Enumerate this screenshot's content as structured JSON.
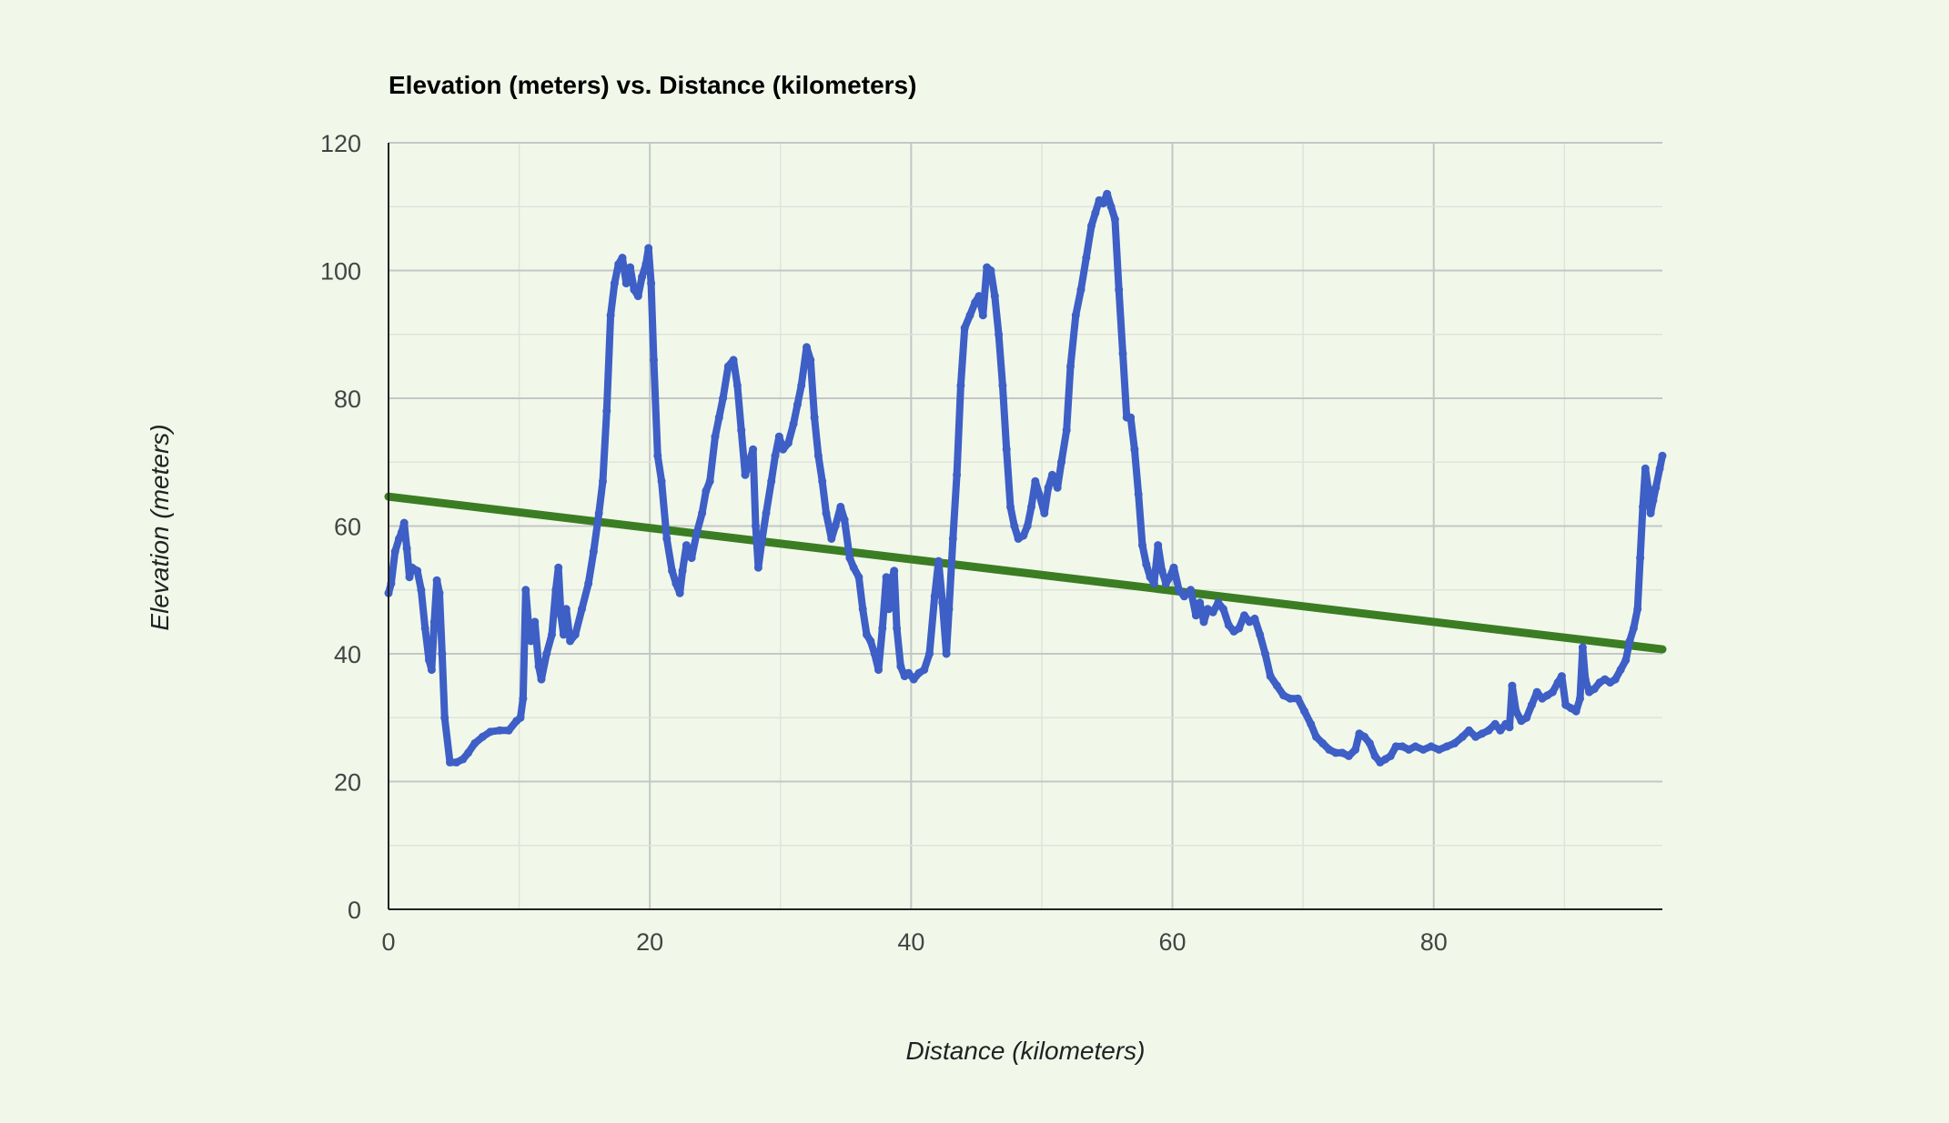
{
  "colors": {
    "background": "#f1f8ea",
    "elevation_series": "#3d5fc6",
    "trendline": "#3b7d23",
    "major_grid": "#c3c7c4",
    "minor_grid": "#dfe3dc",
    "axis": "#222222"
  },
  "chart_data": {
    "type": "scatter",
    "title": "Elevation (meters) vs. Distance (kilometers)",
    "xlabel": "Distance (kilometers)",
    "ylabel": "Elevation (meters)",
    "xlim": [
      0,
      97.5
    ],
    "ylim": [
      0,
      120
    ],
    "x_ticks": [
      "0",
      "20",
      "40",
      "60",
      "80"
    ],
    "y_ticks": [
      "0",
      "20",
      "40",
      "60",
      "80",
      "100",
      "120"
    ],
    "grid": true,
    "legend": "none",
    "series": [
      {
        "points": [
          [
            0,
            49.5
          ],
          [
            0.2,
            51
          ],
          [
            0.5,
            56
          ],
          [
            0.8,
            58
          ],
          [
            1.0,
            59
          ],
          [
            1.2,
            60.5
          ],
          [
            1.4,
            56.5
          ],
          [
            1.6,
            52
          ],
          [
            1.8,
            53.5
          ],
          [
            2.2,
            53
          ],
          [
            2.5,
            50
          ],
          [
            2.8,
            44
          ],
          [
            3.1,
            39
          ],
          [
            3.3,
            37.5
          ],
          [
            3.5,
            45
          ],
          [
            3.7,
            51.5
          ],
          [
            3.9,
            49.5
          ],
          [
            4.1,
            40
          ],
          [
            4.3,
            30
          ],
          [
            4.7,
            23
          ],
          [
            5.2,
            23
          ],
          [
            5.7,
            23.5
          ],
          [
            6.1,
            24.5
          ],
          [
            6.6,
            26
          ],
          [
            7.2,
            27
          ],
          [
            7.8,
            27.8
          ],
          [
            8.5,
            28
          ],
          [
            9.2,
            28
          ],
          [
            9.8,
            29.5
          ],
          [
            10.1,
            30
          ],
          [
            10.3,
            33
          ],
          [
            10.5,
            50
          ],
          [
            10.7,
            45
          ],
          [
            10.9,
            42
          ],
          [
            11.2,
            45
          ],
          [
            11.5,
            38
          ],
          [
            11.7,
            36
          ],
          [
            12.1,
            40
          ],
          [
            12.5,
            43
          ],
          [
            12.8,
            50
          ],
          [
            13.0,
            53.5
          ],
          [
            13.2,
            46
          ],
          [
            13.4,
            43
          ],
          [
            13.6,
            47
          ],
          [
            13.9,
            42
          ],
          [
            14.3,
            43
          ],
          [
            14.8,
            47
          ],
          [
            15.3,
            51
          ],
          [
            15.7,
            56
          ],
          [
            16.1,
            62
          ],
          [
            16.4,
            67
          ],
          [
            16.7,
            78
          ],
          [
            17.0,
            93
          ],
          [
            17.3,
            98
          ],
          [
            17.6,
            101
          ],
          [
            17.9,
            102
          ],
          [
            18.2,
            98
          ],
          [
            18.5,
            100.5
          ],
          [
            18.8,
            97
          ],
          [
            19.1,
            96
          ],
          [
            19.4,
            99
          ],
          [
            19.7,
            101
          ],
          [
            19.9,
            103.5
          ],
          [
            20.1,
            98
          ],
          [
            20.3,
            86
          ],
          [
            20.6,
            71
          ],
          [
            20.9,
            67
          ],
          [
            21.3,
            58
          ],
          [
            21.7,
            53
          ],
          [
            22.0,
            51
          ],
          [
            22.3,
            49.5
          ],
          [
            22.5,
            53
          ],
          [
            22.8,
            57
          ],
          [
            23.2,
            55
          ],
          [
            23.6,
            59
          ],
          [
            24.0,
            62
          ],
          [
            24.3,
            65.5
          ],
          [
            24.6,
            67
          ],
          [
            25.0,
            74
          ],
          [
            25.3,
            77
          ],
          [
            25.6,
            80
          ],
          [
            26.0,
            85
          ],
          [
            26.4,
            86
          ],
          [
            26.7,
            82
          ],
          [
            27.0,
            75
          ],
          [
            27.3,
            68
          ],
          [
            27.6,
            70
          ],
          [
            27.9,
            72
          ],
          [
            28.1,
            60
          ],
          [
            28.3,
            53.5
          ],
          [
            28.6,
            58
          ],
          [
            28.9,
            62
          ],
          [
            29.3,
            67
          ],
          [
            29.6,
            71
          ],
          [
            29.9,
            74
          ],
          [
            30.2,
            72
          ],
          [
            30.6,
            73
          ],
          [
            31.0,
            76
          ],
          [
            31.3,
            79
          ],
          [
            31.6,
            82
          ],
          [
            32.0,
            88
          ],
          [
            32.3,
            86
          ],
          [
            32.6,
            77
          ],
          [
            32.9,
            71
          ],
          [
            33.2,
            67
          ],
          [
            33.5,
            62
          ],
          [
            33.9,
            58
          ],
          [
            34.2,
            60
          ],
          [
            34.6,
            63
          ],
          [
            34.9,
            61
          ],
          [
            35.3,
            55
          ],
          [
            35.6,
            53.5
          ],
          [
            36.0,
            52
          ],
          [
            36.3,
            47
          ],
          [
            36.6,
            43
          ],
          [
            36.9,
            42
          ],
          [
            37.2,
            40
          ],
          [
            37.5,
            37.5
          ],
          [
            37.8,
            44
          ],
          [
            38.1,
            52
          ],
          [
            38.3,
            47
          ],
          [
            38.5,
            51.5
          ],
          [
            38.7,
            53
          ],
          [
            38.9,
            44
          ],
          [
            39.2,
            38
          ],
          [
            39.5,
            36.5
          ],
          [
            39.8,
            37
          ],
          [
            40.2,
            36
          ],
          [
            40.6,
            37
          ],
          [
            41.0,
            37.5
          ],
          [
            41.4,
            40
          ],
          [
            41.8,
            49
          ],
          [
            42.1,
            54.5
          ],
          [
            42.4,
            48
          ],
          [
            42.7,
            40
          ],
          [
            42.9,
            47
          ],
          [
            43.2,
            58
          ],
          [
            43.5,
            68
          ],
          [
            43.8,
            82
          ],
          [
            44.1,
            91
          ],
          [
            44.5,
            93
          ],
          [
            44.9,
            95
          ],
          [
            45.2,
            96
          ],
          [
            45.5,
            93
          ],
          [
            45.8,
            100.5
          ],
          [
            46.1,
            100
          ],
          [
            46.4,
            96
          ],
          [
            46.7,
            90
          ],
          [
            47.0,
            82
          ],
          [
            47.3,
            72
          ],
          [
            47.6,
            63
          ],
          [
            47.9,
            60
          ],
          [
            48.2,
            58
          ],
          [
            48.6,
            58.5
          ],
          [
            48.9,
            60
          ],
          [
            49.2,
            63
          ],
          [
            49.5,
            67
          ],
          [
            49.8,
            65
          ],
          [
            50.2,
            62
          ],
          [
            50.5,
            66
          ],
          [
            50.8,
            68
          ],
          [
            51.2,
            66
          ],
          [
            51.5,
            70
          ],
          [
            51.9,
            75
          ],
          [
            52.2,
            85
          ],
          [
            52.6,
            93
          ],
          [
            53.0,
            97
          ],
          [
            53.4,
            102
          ],
          [
            53.8,
            107
          ],
          [
            54.1,
            109
          ],
          [
            54.4,
            111
          ],
          [
            54.7,
            110.5
          ],
          [
            55.0,
            112
          ],
          [
            55.3,
            110
          ],
          [
            55.6,
            108
          ],
          [
            55.9,
            97
          ],
          [
            56.2,
            87
          ],
          [
            56.5,
            77
          ],
          [
            56.8,
            77
          ],
          [
            57.1,
            72
          ],
          [
            57.4,
            65
          ],
          [
            57.7,
            57
          ],
          [
            58.0,
            54
          ],
          [
            58.3,
            52
          ],
          [
            58.6,
            51
          ],
          [
            58.9,
            57
          ],
          [
            59.2,
            53
          ],
          [
            59.5,
            51
          ],
          [
            59.8,
            52
          ],
          [
            60.1,
            53.5
          ],
          [
            60.5,
            50
          ],
          [
            60.9,
            49
          ],
          [
            61.4,
            50
          ],
          [
            61.8,
            46
          ],
          [
            62.1,
            48
          ],
          [
            62.4,
            45
          ],
          [
            62.7,
            47
          ],
          [
            63.1,
            46.5
          ],
          [
            63.5,
            48
          ],
          [
            63.9,
            47
          ],
          [
            64.3,
            44.5
          ],
          [
            64.7,
            43.5
          ],
          [
            65.1,
            44
          ],
          [
            65.5,
            46
          ],
          [
            65.9,
            45
          ],
          [
            66.3,
            45.5
          ],
          [
            66.7,
            43
          ],
          [
            67.1,
            40
          ],
          [
            67.5,
            36.5
          ],
          [
            68.0,
            35
          ],
          [
            68.5,
            33.5
          ],
          [
            69.0,
            33
          ],
          [
            69.6,
            33
          ],
          [
            70.1,
            31
          ],
          [
            70.6,
            29
          ],
          [
            71.0,
            27
          ],
          [
            71.5,
            26
          ],
          [
            72.0,
            25
          ],
          [
            72.5,
            24.5
          ],
          [
            73.0,
            24.5
          ],
          [
            73.5,
            24
          ],
          [
            74.0,
            25
          ],
          [
            74.3,
            27.5
          ],
          [
            74.7,
            27
          ],
          [
            75.1,
            26
          ],
          [
            75.5,
            24
          ],
          [
            75.9,
            23
          ],
          [
            76.3,
            23.5
          ],
          [
            76.7,
            24
          ],
          [
            77.1,
            25.5
          ],
          [
            77.6,
            25.5
          ],
          [
            78.1,
            25
          ],
          [
            78.6,
            25.5
          ],
          [
            79.2,
            25
          ],
          [
            79.8,
            25.5
          ],
          [
            80.4,
            25
          ],
          [
            81.0,
            25.5
          ],
          [
            81.6,
            26
          ],
          [
            82.2,
            27
          ],
          [
            82.7,
            28
          ],
          [
            83.2,
            27
          ],
          [
            83.7,
            27.5
          ],
          [
            84.2,
            28
          ],
          [
            84.7,
            29
          ],
          [
            85.1,
            28
          ],
          [
            85.5,
            29
          ],
          [
            85.8,
            28.5
          ],
          [
            86.0,
            35
          ],
          [
            86.3,
            31
          ],
          [
            86.7,
            29.5
          ],
          [
            87.1,
            30
          ],
          [
            87.5,
            32
          ],
          [
            87.9,
            34
          ],
          [
            88.3,
            33
          ],
          [
            88.7,
            33.5
          ],
          [
            89.1,
            34
          ],
          [
            89.5,
            35.5
          ],
          [
            89.8,
            36.5
          ],
          [
            90.1,
            32
          ],
          [
            90.5,
            31.5
          ],
          [
            90.9,
            31
          ],
          [
            91.2,
            33
          ],
          [
            91.4,
            41
          ],
          [
            91.6,
            36
          ],
          [
            91.9,
            34
          ],
          [
            92.3,
            34.5
          ],
          [
            92.7,
            35.5
          ],
          [
            93.1,
            36
          ],
          [
            93.5,
            35.5
          ],
          [
            93.9,
            36
          ],
          [
            94.3,
            37.5
          ],
          [
            94.7,
            39
          ],
          [
            95.0,
            42
          ],
          [
            95.3,
            44
          ],
          [
            95.6,
            47
          ],
          [
            95.8,
            55
          ],
          [
            96.0,
            63
          ],
          [
            96.2,
            69
          ],
          [
            96.4,
            66
          ],
          [
            96.6,
            62
          ],
          [
            96.8,
            64
          ],
          [
            97.0,
            66
          ],
          [
            97.3,
            69
          ],
          [
            97.5,
            71
          ]
        ]
      }
    ],
    "trendline": {
      "x": [
        0,
        97.5
      ],
      "y": [
        64.6,
        40.7
      ]
    }
  }
}
